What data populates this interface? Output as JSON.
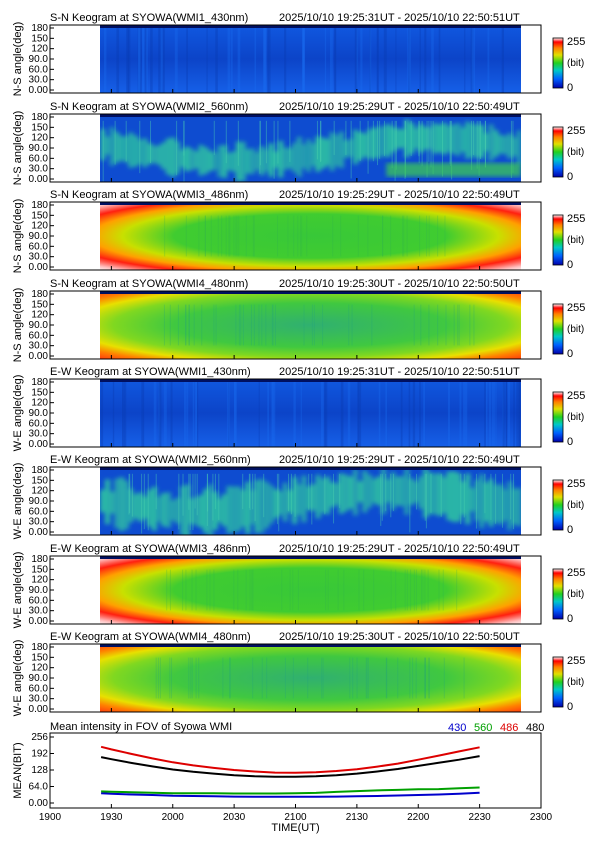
{
  "keograms": [
    {
      "title": "S-N Keogram at SYOWA(WMI1_430nm)",
      "time_range": "2025/10/10 19:25:31UT - 2025/10/10 22:50:51UT",
      "ylabel": "N-S angle(deg)",
      "style": "blue_low"
    },
    {
      "title": "S-N Keogram at SYOWA(WMI2_560nm)",
      "time_range": "2025/10/10 19:25:29UT - 2025/10/10 22:50:49UT",
      "ylabel": "N-S angle(deg)",
      "style": "aurora_sn"
    },
    {
      "title": "S-N Keogram at SYOWA(WMI3_486nm)",
      "time_range": "2025/10/10 19:25:29UT - 2025/10/10 22:50:49UT",
      "ylabel": "N-S angle(deg)",
      "style": "bright_oval"
    },
    {
      "title": "S-N Keogram at SYOWA(WMI4_480nm)",
      "time_range": "2025/10/10 19:25:30UT - 2025/10/10 22:50:50UT",
      "ylabel": "N-S angle(deg)",
      "style": "mid_oval"
    },
    {
      "title": "E-W Keogram at SYOWA(WMI1_430nm)",
      "time_range": "2025/10/10 19:25:31UT - 2025/10/10 22:50:51UT",
      "ylabel": "W-E angle(deg)",
      "style": "blue_low"
    },
    {
      "title": "E-W Keogram at SYOWA(WMI2_560nm)",
      "time_range": "2025/10/10 19:25:29UT - 2025/10/10 22:50:49UT",
      "ylabel": "W-E angle(deg)",
      "style": "aurora_ew"
    },
    {
      "title": "E-W Keogram at SYOWA(WMI3_486nm)",
      "time_range": "2025/10/10 19:25:29UT - 2025/10/10 22:50:49UT",
      "ylabel": "W-E angle(deg)",
      "style": "bright_oval"
    },
    {
      "title": "E-W Keogram at SYOWA(WMI4_480nm)",
      "time_range": "2025/10/10 19:25:30UT - 2025/10/10 22:50:50UT",
      "ylabel": "W-E angle(deg)",
      "style": "mid_oval"
    }
  ],
  "keogram_y_ticks": [
    "180",
    "150",
    "120",
    "90.0",
    "60.0",
    "30.0",
    "0.00"
  ],
  "colorbar": {
    "max": "255",
    "unit": "(bit)",
    "min": "0"
  },
  "mean_panel": {
    "title": "Mean intensity in FOV of Syowa WMI",
    "ylabel": "MEAN(BIT)",
    "xlabel": "TIME(UT)",
    "y_ticks": [
      "256",
      "192",
      "128",
      "64.0",
      "0.00"
    ],
    "legend": [
      {
        "label": "430",
        "color": "#0000cc"
      },
      {
        "label": "560",
        "color": "#00a000"
      },
      {
        "label": "486",
        "color": "#dd0000"
      },
      {
        "label": "480",
        "color": "#000000"
      }
    ]
  },
  "x_ticks": [
    "1900",
    "1930",
    "2000",
    "2030",
    "2100",
    "2130",
    "2200",
    "2230",
    "2300"
  ],
  "chart_data": {
    "type": "line",
    "title": "Mean intensity in FOV of Syowa WMI",
    "xlabel": "TIME(UT)",
    "ylabel": "MEAN(BIT)",
    "ylim": [
      0,
      256
    ],
    "x_minutes_since_1900": [
      25,
      30,
      40,
      50,
      60,
      70,
      80,
      90,
      100,
      110,
      120,
      130,
      140,
      150,
      160,
      170,
      180,
      190,
      200,
      210
    ],
    "series": [
      {
        "name": "430",
        "color": "#0000cc",
        "values": [
          38,
          36,
          33,
          31,
          28,
          27,
          26,
          25,
          24,
          24,
          24,
          24,
          25,
          26,
          27,
          29,
          31,
          33,
          36,
          40
        ]
      },
      {
        "name": "560",
        "color": "#00a000",
        "values": [
          45,
          44,
          42,
          40,
          38,
          38,
          38,
          37,
          37,
          37,
          38,
          39,
          43,
          46,
          49,
          51,
          53,
          54,
          57,
          60
        ]
      },
      {
        "name": "486",
        "color": "#dd0000",
        "values": [
          218,
          208,
          190,
          173,
          158,
          146,
          136,
          128,
          122,
          118,
          117,
          119,
          124,
          131,
          141,
          153,
          168,
          184,
          200,
          216
        ]
      },
      {
        "name": "480",
        "color": "#000000",
        "values": [
          178,
          170,
          155,
          142,
          130,
          121,
          114,
          108,
          104,
          102,
          102,
          104,
          108,
          114,
          122,
          132,
          144,
          156,
          168,
          182
        ]
      }
    ]
  }
}
